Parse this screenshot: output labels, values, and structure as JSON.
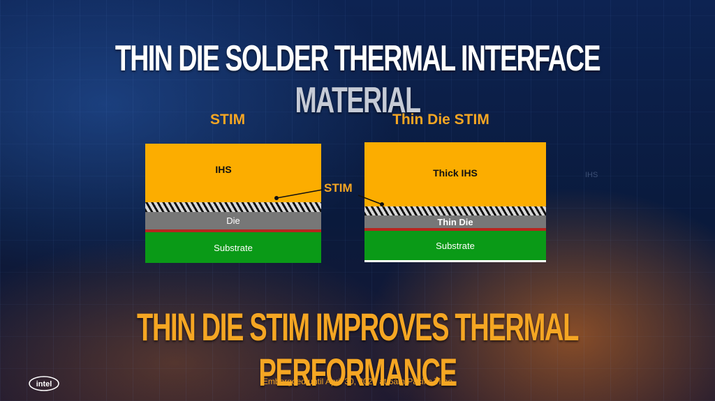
{
  "title": {
    "part1": "THIN DIE SOLDER THERMAL INTERFACE",
    "part2": "MATERIAL"
  },
  "left_diagram": {
    "heading": "STIM",
    "ihs_label": "IHS",
    "die_label": "Die",
    "substrate_label": "Substrate"
  },
  "right_diagram": {
    "heading": "Thin Die STIM",
    "ihs_label": "Thick IHS",
    "die_label": "Thin Die",
    "substrate_label": "Substrate"
  },
  "callout": {
    "stim_label": "STIM"
  },
  "ghost_label": "IHS",
  "subtitle": "THIN DIE STIM IMPROVES THERMAL PERFORMANCE",
  "embargo": "Embargoed until April 30, 2020 at 6am Pacific Time",
  "logo": {
    "text": "intel"
  },
  "colors": {
    "ihs": "#fcad00",
    "die": "#777777",
    "substrate": "#0a9a17",
    "accent": "#f5a623"
  }
}
